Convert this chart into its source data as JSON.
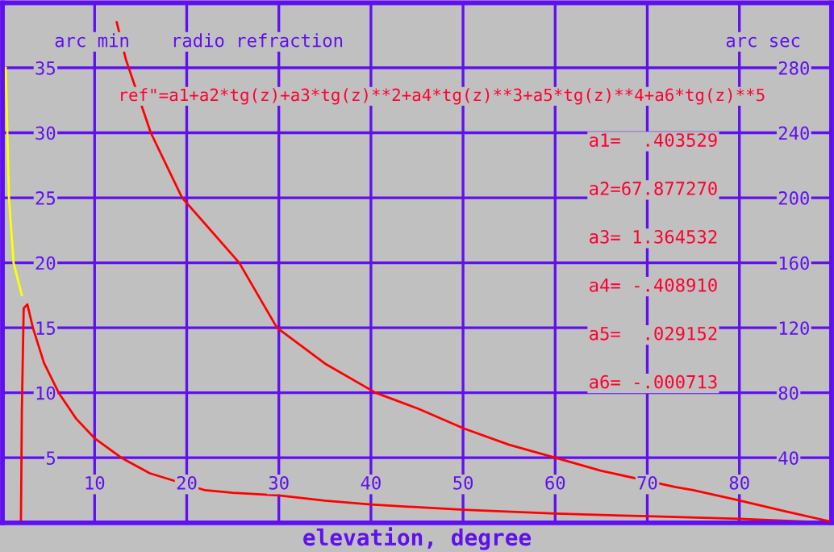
{
  "chart_data": {
    "type": "line",
    "title": "radio refraction",
    "xlabel": "elevation, degree",
    "ylabel": "arc min",
    "y2label": "arc sec",
    "annotations": [
      "ref\"=a1+a2*tg(z)+a3*tg(z)**2+a4*tg(z)**3+a5*tg(z)**4+a6*tg(z)**5",
      "a1=  .403529",
      "a2=67.877270",
      "a3= 1.364532",
      "a4= -.408910",
      "a5=  .029152",
      "a6= -.000713"
    ],
    "xlim": [
      0,
      90
    ],
    "xticks": [
      10,
      20,
      30,
      40,
      50,
      60,
      70,
      80
    ],
    "ylim": [
      0,
      40
    ],
    "yticks": [
      5,
      10,
      15,
      20,
      25,
      30,
      35
    ],
    "y2lim": [
      0,
      320
    ],
    "y2ticks": [
      40,
      80,
      120,
      160,
      200,
      240,
      280
    ],
    "grid": true,
    "legend": false,
    "line_style": "solid",
    "marker": "none",
    "series": [
      {
        "color": "#ffff00",
        "x": [
          0.35,
          0.7,
          1.2,
          2.1
        ],
        "values": [
          35,
          25,
          20,
          17.5
        ]
      },
      {
        "color": "#ff0000",
        "x": [
          1.8,
          2.0,
          2.05,
          2.1,
          2.3,
          2.7,
          3.3,
          4.5,
          6.1,
          8,
          10,
          12.9,
          16,
          22,
          25,
          30,
          35,
          40,
          45,
          50,
          60,
          70,
          80,
          90
        ],
        "values": [
          0,
          0,
          4,
          8.5,
          16.5,
          16.8,
          15,
          12.3,
          10,
          8,
          6.5,
          5,
          3.8,
          2.5,
          2.3,
          2.1,
          1.7,
          1.4,
          1.2,
          1.0,
          0.7,
          0.5,
          0.3,
          0
        ]
      },
      {
        "color": "#ff0000",
        "axis": "y2",
        "x": [
          12.4,
          13.4,
          16.1,
          19.5,
          25.7,
          29.8,
          35,
          40.5,
          45.2,
          50.1,
          55,
          60,
          65,
          73,
          75,
          79.8,
          85,
          89.7
        ],
        "values": [
          308,
          285,
          240,
          200,
          160,
          120,
          98,
          80,
          70,
          58,
          48,
          40,
          32,
          22,
          20,
          14,
          7,
          1
        ]
      }
    ]
  }
}
